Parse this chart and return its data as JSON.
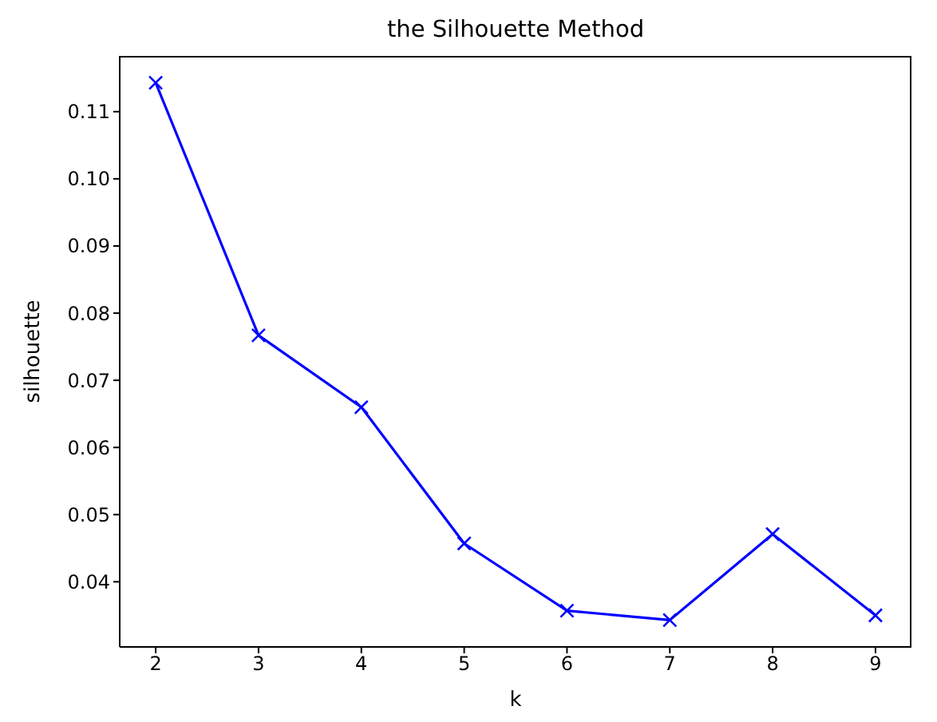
{
  "chart_data": {
    "type": "line",
    "title": "the Silhouette Method",
    "xlabel": "k",
    "ylabel": "silhouette",
    "x": [
      2,
      3,
      4,
      5,
      6,
      7,
      8,
      9
    ],
    "series": [
      {
        "color": "#0000ff",
        "values": [
          0.1143,
          0.0767,
          0.066,
          0.0457,
          0.0357,
          0.0343,
          0.0471,
          0.035
        ]
      }
    ],
    "xlim": [
      1.65,
      9.35
    ],
    "xticks": [
      2,
      3,
      4,
      5,
      6,
      7,
      8,
      9
    ],
    "ylim": [
      0.0303,
      0.1183
    ],
    "yticks": [
      0.04,
      0.05,
      0.06,
      0.07,
      0.08,
      0.09,
      {
        "value": 0.1,
        "label": "0.10"
      },
      0.11
    ],
    "marker": "cross",
    "line_style": "solid",
    "grid": false,
    "legend": false
  }
}
